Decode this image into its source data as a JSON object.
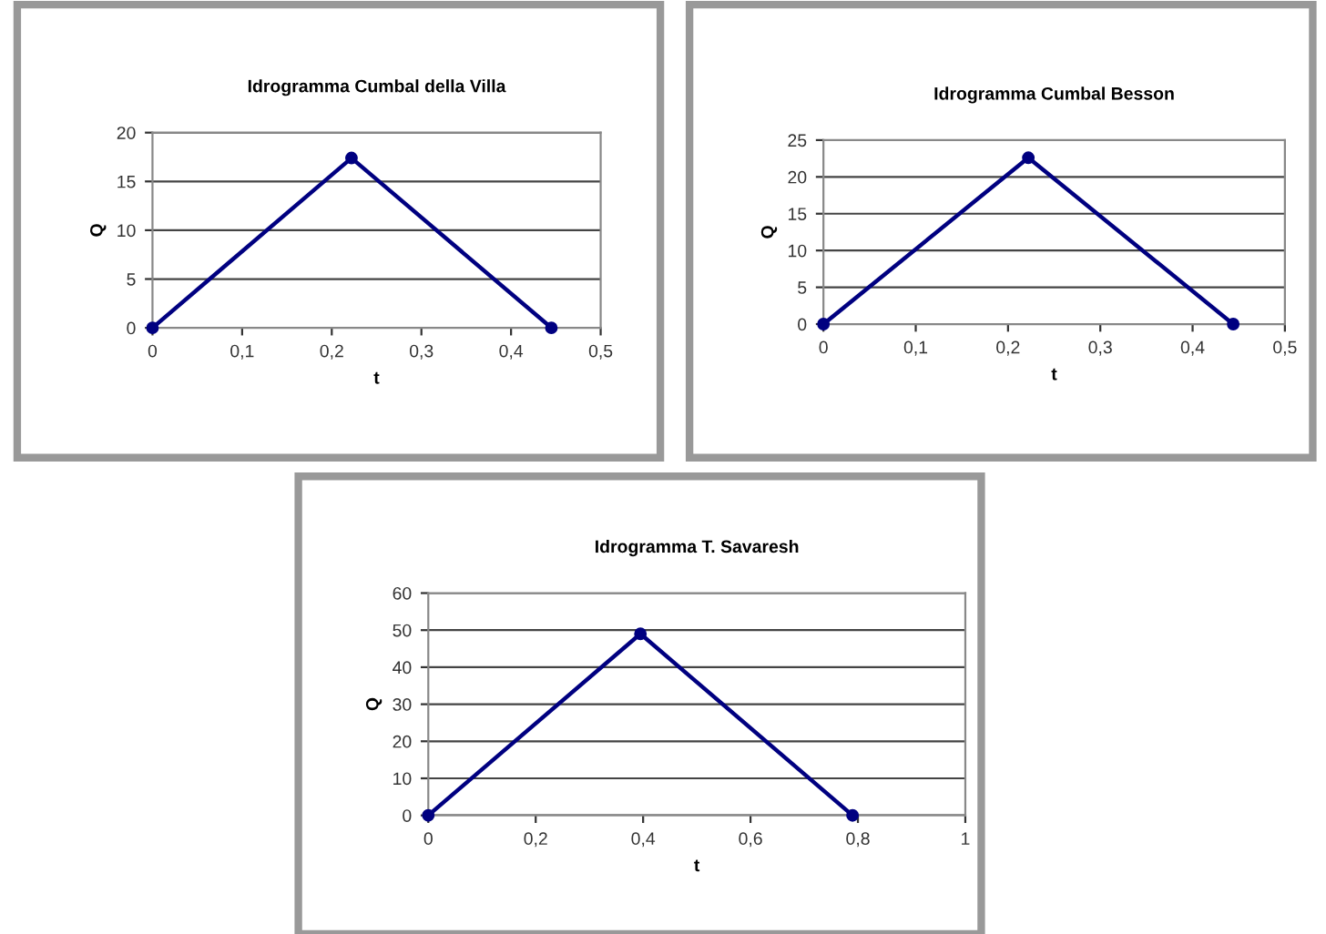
{
  "chart_data": [
    {
      "type": "line",
      "title": "Idrogramma Cumbal della Villa",
      "xlabel": "t",
      "ylabel": "Q",
      "marker": "circle",
      "line_style": "solid",
      "grid": "y",
      "series": [
        {
          "x": [
            0,
            0.222,
            0.445
          ],
          "values": [
            0,
            17.4,
            0
          ],
          "color": "#000080"
        }
      ],
      "xlim": [
        0,
        0.5
      ],
      "xticks": [
        0,
        {
          "value": 0.1,
          "label": "0,1"
        },
        {
          "value": 0.2,
          "label": "0,2"
        },
        {
          "value": 0.3,
          "label": "0,3"
        },
        {
          "value": 0.4,
          "label": "0,4"
        },
        {
          "value": 0.5,
          "label": "0,5"
        }
      ],
      "ylim": [
        0,
        20
      ],
      "yticks": [
        0,
        5,
        10,
        15,
        20
      ]
    },
    {
      "type": "line",
      "title": "Idrogramma Cumbal Besson",
      "xlabel": "t",
      "ylabel": "Q",
      "marker": "circle",
      "line_style": "solid",
      "grid": "y",
      "series": [
        {
          "x": [
            0,
            0.222,
            0.444
          ],
          "values": [
            0,
            22.6,
            0
          ],
          "color": "#000080"
        }
      ],
      "xlim": [
        0,
        0.5
      ],
      "xticks": [
        0,
        {
          "value": 0.1,
          "label": "0,1"
        },
        {
          "value": 0.2,
          "label": "0,2"
        },
        {
          "value": 0.3,
          "label": "0,3"
        },
        {
          "value": 0.4,
          "label": "0,4"
        },
        {
          "value": 0.5,
          "label": "0,5"
        }
      ],
      "ylim": [
        0,
        25
      ],
      "yticks": [
        0,
        5,
        10,
        15,
        20,
        25
      ]
    },
    {
      "type": "line",
      "title": "Idrogramma T. Savaresh",
      "xlabel": "t",
      "ylabel": "Q",
      "marker": "circle",
      "line_style": "solid",
      "grid": "y",
      "series": [
        {
          "x": [
            0,
            0.395,
            0.79
          ],
          "values": [
            0,
            49,
            0
          ],
          "color": "#000080"
        }
      ],
      "xlim": [
        0,
        1
      ],
      "xticks": [
        0,
        {
          "value": 0.2,
          "label": "0,2"
        },
        {
          "value": 0.4,
          "label": "0,4"
        },
        {
          "value": 0.6,
          "label": "0,6"
        },
        {
          "value": 0.8,
          "label": "0,8"
        },
        1
      ],
      "ylim": [
        0,
        60
      ],
      "yticks": [
        0,
        10,
        20,
        30,
        40,
        50,
        60
      ]
    }
  ]
}
